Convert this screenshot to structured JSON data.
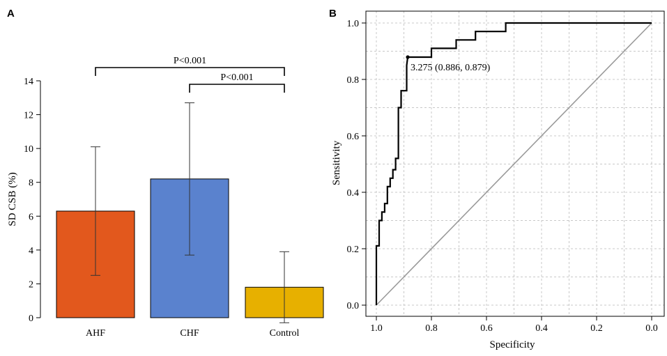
{
  "chart_data": [
    {
      "panel": "A",
      "type": "bar",
      "title": "",
      "xlabel": "",
      "ylabel": "SD CSB (%)",
      "ylim": [
        0,
        14
      ],
      "yticks": [
        0,
        2,
        4,
        6,
        8,
        10,
        12,
        14
      ],
      "categories": [
        "AHF",
        "CHF",
        "Control"
      ],
      "values": [
        6.3,
        8.2,
        1.8
      ],
      "error_low": [
        2.5,
        3.7,
        -0.3
      ],
      "error_high": [
        10.1,
        12.7,
        3.9
      ],
      "colors": [
        "#E2581D",
        "#5A82CE",
        "#E7B000"
      ],
      "comparisons": [
        {
          "from": "AHF",
          "to": "Control",
          "label": "P<0.001"
        },
        {
          "from": "CHF",
          "to": "Control",
          "label": "P<0.001"
        }
      ]
    },
    {
      "panel": "B",
      "type": "line",
      "title": "",
      "xlabel": "Specificity",
      "ylabel": "Sensitivity",
      "xlim": [
        1.0,
        0.0
      ],
      "ylim": [
        0.0,
        1.0
      ],
      "xticks": [
        1.0,
        0.8,
        0.6,
        0.4,
        0.2,
        0.0
      ],
      "yticks": [
        0.0,
        0.2,
        0.4,
        0.6,
        0.8,
        1.0
      ],
      "xtick_labels": [
        "1.0",
        "0.8",
        "0.6",
        "0.4",
        "0.2",
        "0.0"
      ],
      "ytick_labels": [
        "0.0",
        "0.2",
        "0.4",
        "0.6",
        "0.8",
        "1.0"
      ],
      "grid": true,
      "series": [
        {
          "name": "ROC",
          "x": [
            1.0,
            1.0,
            0.99,
            0.99,
            0.98,
            0.98,
            0.97,
            0.97,
            0.96,
            0.96,
            0.95,
            0.95,
            0.94,
            0.94,
            0.93,
            0.93,
            0.92,
            0.92,
            0.91,
            0.91,
            0.89,
            0.89,
            0.886,
            0.8,
            0.8,
            0.71,
            0.71,
            0.64,
            0.64,
            0.53,
            0.53,
            0.0
          ],
          "y": [
            0.0,
            0.21,
            0.21,
            0.3,
            0.3,
            0.33,
            0.33,
            0.36,
            0.36,
            0.42,
            0.42,
            0.45,
            0.45,
            0.48,
            0.48,
            0.52,
            0.52,
            0.7,
            0.7,
            0.76,
            0.76,
            0.85,
            0.879,
            0.879,
            0.91,
            0.91,
            0.94,
            0.94,
            0.97,
            0.97,
            1.0,
            1.0
          ]
        },
        {
          "name": "reference",
          "x": [
            1.0,
            0.0
          ],
          "y": [
            0.0,
            1.0
          ]
        }
      ],
      "annotation": {
        "x": 0.886,
        "y": 0.879,
        "label": "3.275 (0.886, 0.879)"
      }
    }
  ],
  "colors": {
    "roc": "#000000",
    "reference": "#9A9A9A",
    "grid": "#C8C8C8"
  }
}
